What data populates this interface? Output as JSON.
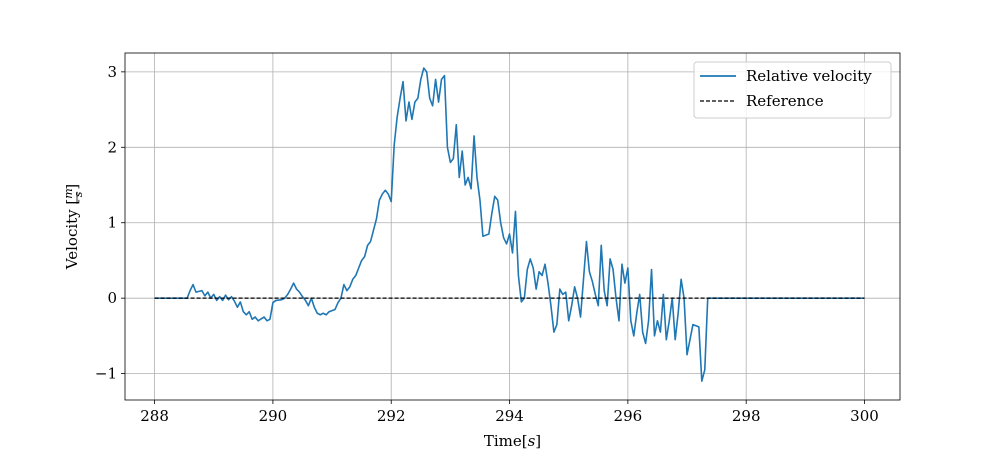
{
  "chart_data": {
    "type": "line",
    "title": "",
    "xlabel_prefix": "Time",
    "xlabel_unit": "s",
    "ylabel_prefix": "Velocity",
    "ylabel_unit_num": "m",
    "ylabel_unit_den": "s",
    "xlim": [
      287.5,
      300.6
    ],
    "ylim": [
      -1.35,
      3.25
    ],
    "xticks": [
      288,
      290,
      292,
      294,
      296,
      298,
      300
    ],
    "yticks": [
      -1,
      0,
      1,
      2,
      3
    ],
    "ytick_labels": [
      "−1",
      "0",
      "1",
      "2",
      "3"
    ],
    "grid": true,
    "legend_position": "top-right",
    "colors": {
      "velocity": "#1f77b4",
      "reference": "#000000"
    },
    "series": [
      {
        "name": "Relative velocity",
        "style": "solid",
        "points": [
          [
            288.0,
            0.0
          ],
          [
            288.55,
            0.0
          ],
          [
            288.6,
            0.1
          ],
          [
            288.65,
            0.18
          ],
          [
            288.7,
            0.08
          ],
          [
            288.8,
            0.1
          ],
          [
            288.85,
            0.03
          ],
          [
            288.9,
            0.08
          ],
          [
            288.95,
            0.0
          ],
          [
            289.0,
            0.05
          ],
          [
            289.05,
            -0.03
          ],
          [
            289.1,
            0.02
          ],
          [
            289.15,
            -0.03
          ],
          [
            289.2,
            0.04
          ],
          [
            289.25,
            -0.02
          ],
          [
            289.3,
            0.02
          ],
          [
            289.35,
            -0.04
          ],
          [
            289.4,
            -0.12
          ],
          [
            289.45,
            -0.05
          ],
          [
            289.5,
            -0.18
          ],
          [
            289.55,
            -0.22
          ],
          [
            289.6,
            -0.18
          ],
          [
            289.65,
            -0.28
          ],
          [
            289.7,
            -0.25
          ],
          [
            289.75,
            -0.3
          ],
          [
            289.85,
            -0.25
          ],
          [
            289.9,
            -0.3
          ],
          [
            289.95,
            -0.28
          ],
          [
            290.0,
            -0.06
          ],
          [
            290.05,
            -0.03
          ],
          [
            290.15,
            -0.02
          ],
          [
            290.2,
            0.0
          ],
          [
            290.25,
            0.05
          ],
          [
            290.3,
            0.12
          ],
          [
            290.35,
            0.2
          ],
          [
            290.4,
            0.12
          ],
          [
            290.45,
            0.08
          ],
          [
            290.5,
            0.02
          ],
          [
            290.55,
            -0.03
          ],
          [
            290.6,
            -0.1
          ],
          [
            290.65,
            0.0
          ],
          [
            290.7,
            -0.12
          ],
          [
            290.75,
            -0.2
          ],
          [
            290.8,
            -0.22
          ],
          [
            290.85,
            -0.2
          ],
          [
            290.9,
            -0.22
          ],
          [
            290.95,
            -0.18
          ],
          [
            291.05,
            -0.15
          ],
          [
            291.1,
            -0.06
          ],
          [
            291.15,
            0.0
          ],
          [
            291.2,
            0.18
          ],
          [
            291.25,
            0.1
          ],
          [
            291.3,
            0.15
          ],
          [
            291.35,
            0.25
          ],
          [
            291.4,
            0.3
          ],
          [
            291.45,
            0.4
          ],
          [
            291.5,
            0.5
          ],
          [
            291.55,
            0.55
          ],
          [
            291.6,
            0.7
          ],
          [
            291.65,
            0.75
          ],
          [
            291.7,
            0.9
          ],
          [
            291.75,
            1.05
          ],
          [
            291.8,
            1.3
          ],
          [
            291.85,
            1.38
          ],
          [
            291.9,
            1.43
          ],
          [
            291.95,
            1.38
          ],
          [
            292.0,
            1.28
          ],
          [
            292.05,
            2.03
          ],
          [
            292.1,
            2.4
          ],
          [
            292.15,
            2.65
          ],
          [
            292.2,
            2.87
          ],
          [
            292.25,
            2.35
          ],
          [
            292.3,
            2.6
          ],
          [
            292.35,
            2.37
          ],
          [
            292.4,
            2.6
          ],
          [
            292.45,
            2.65
          ],
          [
            292.5,
            2.9
          ],
          [
            292.55,
            3.05
          ],
          [
            292.6,
            3.0
          ],
          [
            292.65,
            2.65
          ],
          [
            292.7,
            2.55
          ],
          [
            292.75,
            2.9
          ],
          [
            292.8,
            2.6
          ],
          [
            292.85,
            2.9
          ],
          [
            292.9,
            2.95
          ],
          [
            292.95,
            2.0
          ],
          [
            293.0,
            1.8
          ],
          [
            293.05,
            1.85
          ],
          [
            293.1,
            2.3
          ],
          [
            293.15,
            1.6
          ],
          [
            293.2,
            1.95
          ],
          [
            293.25,
            1.5
          ],
          [
            293.3,
            1.6
          ],
          [
            293.35,
            1.45
          ],
          [
            293.4,
            2.15
          ],
          [
            293.45,
            1.6
          ],
          [
            293.5,
            1.3
          ],
          [
            293.55,
            0.82
          ],
          [
            293.65,
            0.85
          ],
          [
            293.7,
            1.12
          ],
          [
            293.75,
            1.35
          ],
          [
            293.8,
            1.3
          ],
          [
            293.85,
            1.0
          ],
          [
            293.9,
            0.8
          ],
          [
            293.95,
            0.72
          ],
          [
            294.0,
            0.85
          ],
          [
            294.05,
            0.6
          ],
          [
            294.1,
            1.15
          ],
          [
            294.15,
            0.3
          ],
          [
            294.2,
            -0.05
          ],
          [
            294.25,
            0.0
          ],
          [
            294.3,
            0.38
          ],
          [
            294.35,
            0.52
          ],
          [
            294.4,
            0.4
          ],
          [
            294.45,
            0.12
          ],
          [
            294.5,
            0.35
          ],
          [
            294.55,
            0.3
          ],
          [
            294.6,
            0.45
          ],
          [
            294.65,
            0.2
          ],
          [
            294.7,
            -0.1
          ],
          [
            294.75,
            -0.45
          ],
          [
            294.8,
            -0.35
          ],
          [
            294.85,
            0.12
          ],
          [
            294.9,
            0.05
          ],
          [
            294.95,
            0.08
          ],
          [
            295.0,
            -0.3
          ],
          [
            295.05,
            -0.1
          ],
          [
            295.1,
            0.15
          ],
          [
            295.15,
            0.0
          ],
          [
            295.2,
            -0.25
          ],
          [
            295.25,
            0.25
          ],
          [
            295.3,
            0.75
          ],
          [
            295.35,
            0.35
          ],
          [
            295.4,
            0.22
          ],
          [
            295.45,
            0.05
          ],
          [
            295.5,
            -0.1
          ],
          [
            295.55,
            0.7
          ],
          [
            295.6,
            0.1
          ],
          [
            295.65,
            -0.1
          ],
          [
            295.7,
            0.52
          ],
          [
            295.75,
            0.38
          ],
          [
            295.8,
            0.0
          ],
          [
            295.85,
            -0.3
          ],
          [
            295.9,
            0.45
          ],
          [
            295.95,
            0.2
          ],
          [
            296.0,
            0.4
          ],
          [
            296.05,
            -0.3
          ],
          [
            296.1,
            -0.5
          ],
          [
            296.15,
            -0.2
          ],
          [
            296.2,
            0.05
          ],
          [
            296.25,
            -0.45
          ],
          [
            296.3,
            -0.6
          ],
          [
            296.35,
            -0.3
          ],
          [
            296.4,
            0.38
          ],
          [
            296.45,
            -0.5
          ],
          [
            296.5,
            -0.3
          ],
          [
            296.55,
            -0.45
          ],
          [
            296.6,
            0.05
          ],
          [
            296.65,
            -0.55
          ],
          [
            296.7,
            -0.3
          ],
          [
            296.75,
            0.0
          ],
          [
            296.8,
            -0.55
          ],
          [
            296.85,
            -0.2
          ],
          [
            296.9,
            0.25
          ],
          [
            296.95,
            0.0
          ],
          [
            297.0,
            -0.75
          ],
          [
            297.1,
            -0.35
          ],
          [
            297.2,
            -0.38
          ],
          [
            297.25,
            -1.1
          ],
          [
            297.3,
            -0.95
          ],
          [
            297.35,
            0.0
          ],
          [
            300.0,
            0.0
          ]
        ]
      },
      {
        "name": "Reference",
        "style": "dashed",
        "points": [
          [
            288.0,
            0.0
          ],
          [
            300.0,
            0.0
          ]
        ]
      }
    ]
  }
}
